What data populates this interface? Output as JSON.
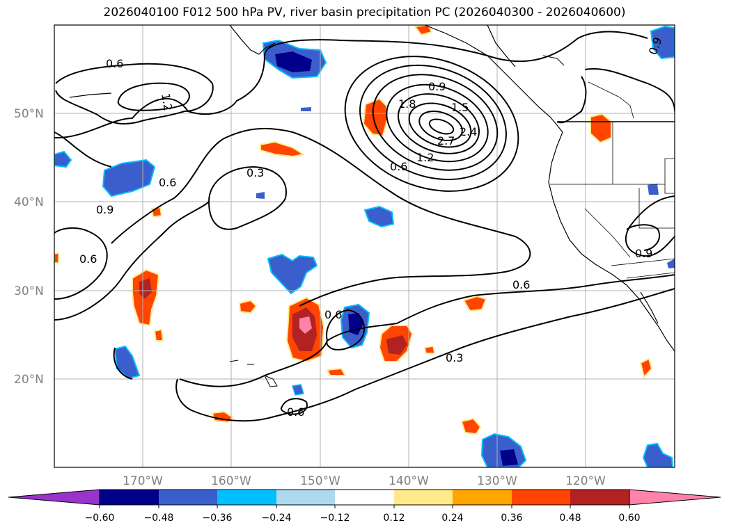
{
  "title": "2026040100 F012 500 hPa PV, river basin precipitation PC (2026040300 - 2026040600)",
  "map": {
    "lat_labels": [
      "50°N",
      "40°N",
      "30°N",
      "20°N"
    ],
    "lon_labels": [
      "170°W",
      "160°W",
      "150°W",
      "140°W",
      "130°W",
      "120°W"
    ],
    "contour_labels": [
      "0.6",
      "1.2",
      "0.9",
      "1.8",
      "1.5",
      "2.7",
      "2.4",
      "1.2",
      "0.6",
      "0.3",
      "0.6",
      "0.9",
      "0.6",
      "0.6",
      "0.3",
      "0.6",
      "0.9",
      "0.6",
      "0.9"
    ],
    "grid_color": "#b0b0b0"
  },
  "colorbar": {
    "ticks": [
      "−0.60",
      "−0.48",
      "−0.36",
      "−0.24",
      "−0.12",
      "0.12",
      "0.24",
      "0.36",
      "0.48",
      "0.60"
    ],
    "colors": [
      "#9933cc",
      "#00008b",
      "#3a5fcd",
      "#00bfff",
      "#add8f0",
      "#ffffff",
      "#ffe98a",
      "#ffa500",
      "#ff4500",
      "#b22222",
      "#ff82a8"
    ]
  }
}
